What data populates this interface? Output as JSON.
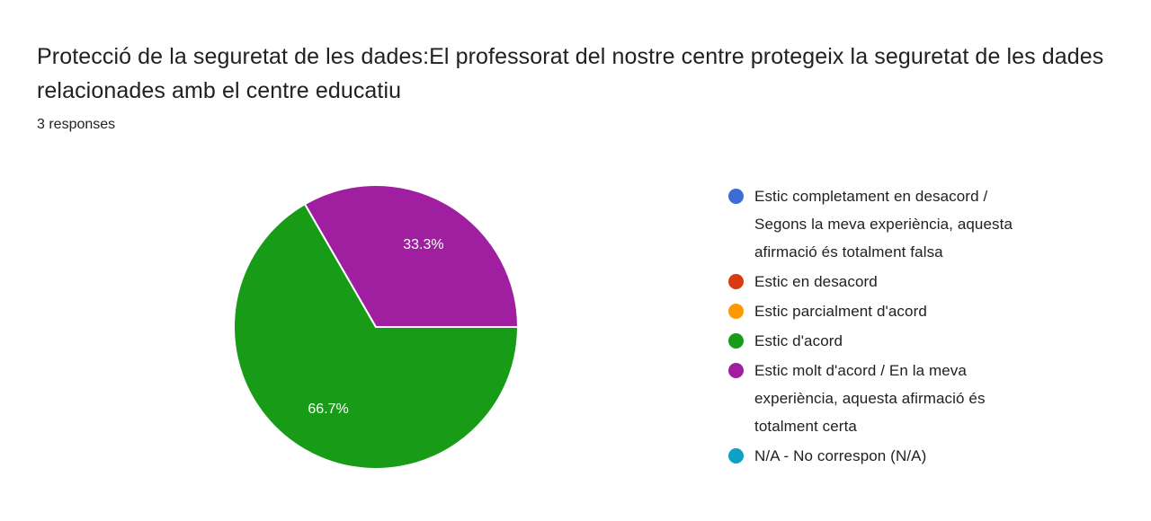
{
  "header": {
    "title": "Protecció de la seguretat de les dades:El professorat del nostre centre protegeix la seguretat de les dades relacionades amb el centre educatiu",
    "responses_label": "3 responses"
  },
  "chart_data": {
    "type": "pie",
    "title": "Protecció de la seguretat de les dades:El professorat del nostre centre protegeix la seguretat de les dades relacionades amb el centre educatiu",
    "subtitle": "3 responses",
    "legend_position": "right",
    "start_angle_deg_cw_from_north": 90,
    "total_responses": 3,
    "slice_label_color": "#ffffff",
    "categories": [
      "Estic completament en desacord / Segons la meva experiència, aquesta afirmació és totalment falsa",
      "Estic en desacord",
      "Estic parcialment d'acord",
      "Estic d'acord",
      "Estic molt d'acord / En la meva experiència, aquesta afirmació és totalment certa",
      "N/A - No correspon (N/A)"
    ],
    "values": [
      0,
      0,
      0,
      2,
      1,
      0
    ],
    "percents": [
      0,
      0,
      0,
      66.7,
      33.3,
      0
    ],
    "slice_labels": [
      "",
      "",
      "",
      "66.7%",
      "33.3%",
      ""
    ],
    "colors": [
      "#3D6CD6",
      "#DA3A12",
      "#FF9901",
      "#189C18",
      "#A01EA0",
      "#0FA0C5"
    ]
  }
}
